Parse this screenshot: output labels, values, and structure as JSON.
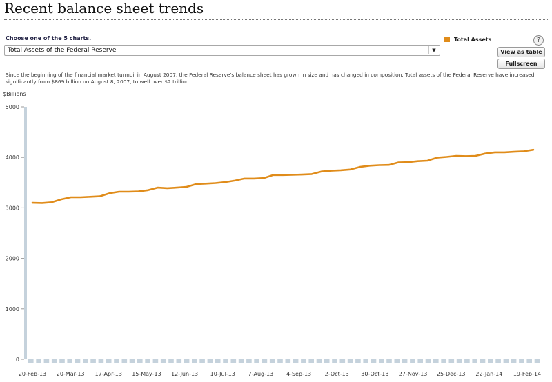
{
  "page": {
    "title": "Recent balance sheet trends"
  },
  "controls": {
    "choose_label": "Choose one of the 5 charts.",
    "selected_chart": "Total Assets of the Federal Reserve",
    "dropdown_arrow": "▼",
    "help_label": "?",
    "view_table_label": "View as table",
    "fullscreen_label": "Fullscreen"
  },
  "description": "Since the beginning of the financial market turmoil in August 2007, the Federal Reserve's balance sheet has grown in size and has changed in composition. Total assets of the Federal Reserve have increased significantly from $869 billion on August 8, 2007, to well over $2 trillion.",
  "colors": {
    "series": "#e08c1a",
    "axis_bars": "#c5d2dc",
    "grid": "#dddddd"
  },
  "chart_data": {
    "type": "line",
    "title": "",
    "ylabel": "$Billions",
    "xlabel": "",
    "ylim": [
      0,
      5000
    ],
    "y_ticks": [
      0,
      1000,
      2000,
      3000,
      4000,
      5000
    ],
    "grid": false,
    "legend_position": "top-right",
    "x_tick_labels": [
      "20-Feb-13",
      "20-Mar-13",
      "17-Apr-13",
      "15-May-13",
      "12-Jun-13",
      "10-Jul-13",
      "7-Aug-13",
      "4-Sep-13",
      "2-Oct-13",
      "30-Oct-13",
      "27-Nov-13",
      "25-Dec-13",
      "22-Jan-14",
      "19-Feb-14"
    ],
    "series": [
      {
        "name": "Total Assets",
        "values": [
          3100,
          3095,
          3110,
          3170,
          3210,
          3210,
          3220,
          3230,
          3290,
          3320,
          3320,
          3325,
          3350,
          3400,
          3390,
          3400,
          3415,
          3470,
          3480,
          3490,
          3510,
          3540,
          3580,
          3580,
          3590,
          3650,
          3650,
          3655,
          3660,
          3670,
          3720,
          3735,
          3745,
          3760,
          3810,
          3835,
          3845,
          3850,
          3900,
          3905,
          3925,
          3935,
          3995,
          4010,
          4030,
          4025,
          4030,
          4075,
          4100,
          4100,
          4110,
          4120,
          4150
        ]
      }
    ]
  }
}
